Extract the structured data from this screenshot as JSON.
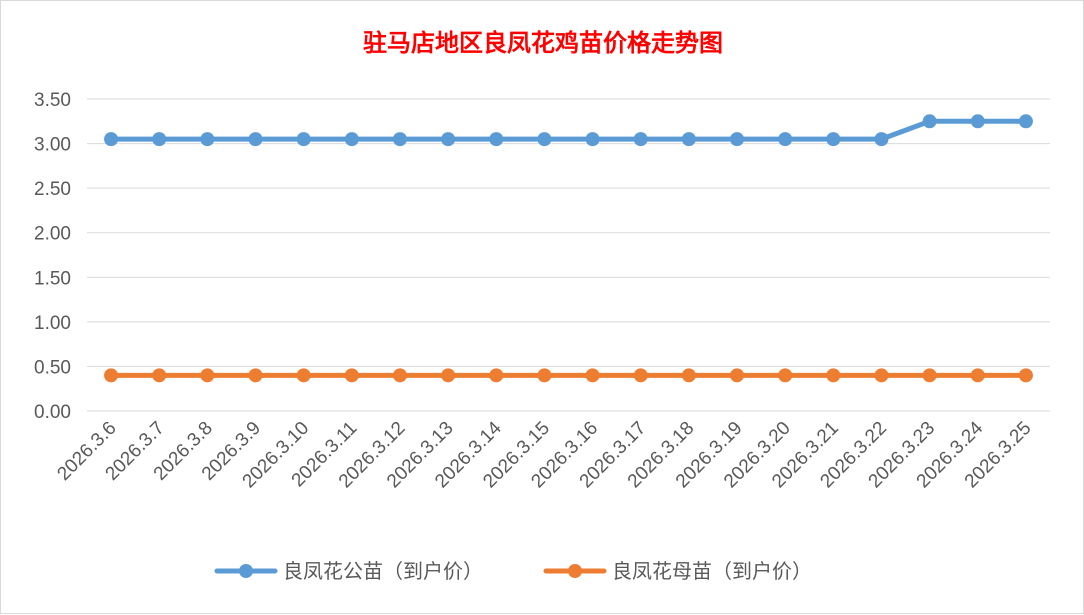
{
  "chart_data": {
    "type": "line",
    "title": "驻马店地区良凤花鸡苗价格走势图",
    "title_color": "#ff0000",
    "categories": [
      "2026.3.6",
      "2026.3.7",
      "2026.3.8",
      "2026.3.9",
      "2026.3.10",
      "2026.3.11",
      "2026.3.12",
      "2026.3.13",
      "2026.3.14",
      "2026.3.15",
      "2026.3.16",
      "2026.3.17",
      "2026.3.18",
      "2026.3.19",
      "2026.3.20",
      "2026.3.21",
      "2026.3.22",
      "2026.3.23",
      "2026.3.24",
      "2026.3.25"
    ],
    "y_ticks": [
      "0.00",
      "0.50",
      "1.00",
      "1.50",
      "2.00",
      "2.50",
      "3.00",
      "3.50"
    ],
    "ylim": [
      0,
      3.5
    ],
    "grid": true,
    "legend_position": "bottom",
    "series": [
      {
        "name": "良凤花公苗（到户价）",
        "color": "#5b9bd5",
        "values": [
          3.05,
          3.05,
          3.05,
          3.05,
          3.05,
          3.05,
          3.05,
          3.05,
          3.05,
          3.05,
          3.05,
          3.05,
          3.05,
          3.05,
          3.05,
          3.05,
          3.05,
          3.25,
          3.25,
          3.25
        ]
      },
      {
        "name": "良凤花母苗（到户价）",
        "color": "#ed7d31",
        "values": [
          0.4,
          0.4,
          0.4,
          0.4,
          0.4,
          0.4,
          0.4,
          0.4,
          0.4,
          0.4,
          0.4,
          0.4,
          0.4,
          0.4,
          0.4,
          0.4,
          0.4,
          0.4,
          0.4,
          0.4
        ]
      }
    ]
  }
}
